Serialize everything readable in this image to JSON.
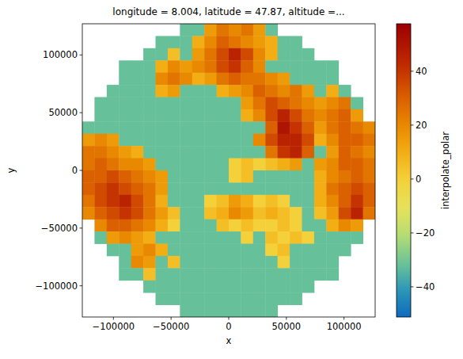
{
  "chart_data": {
    "type": "heatmap",
    "title": "longitude = 8.004, latitude = 47.87, altitude =...",
    "x_label": "x",
    "y_label": "y",
    "xlim": [
      -127000,
      127000
    ],
    "ylim": [
      -127000,
      127000
    ],
    "xticks": [
      {
        "value": -100000,
        "label": "−100000"
      },
      {
        "value": -50000,
        "label": "−50000"
      },
      0,
      50000,
      100000
    ],
    "yticks": [
      {
        "value": -100000,
        "label": "−100000"
      },
      {
        "value": -50000,
        "label": "−50000"
      },
      0,
      50000,
      100000
    ],
    "grid": false,
    "cells": [
      [
        null,
        null,
        null,
        null,
        null,
        null,
        null,
        null,
        -32,
        -32,
        15,
        25,
        20,
        25,
        15,
        -32,
        null,
        null,
        null,
        null,
        null,
        null,
        null,
        null
      ],
      [
        null,
        null,
        null,
        null,
        null,
        null,
        -32,
        -32,
        -32,
        10,
        20,
        30,
        25,
        20,
        15,
        10,
        -32,
        -32,
        null,
        null,
        null,
        null,
        null,
        null
      ],
      [
        null,
        null,
        null,
        null,
        null,
        -32,
        -32,
        5,
        -32,
        15,
        25,
        35,
        45,
        35,
        20,
        10,
        -32,
        -32,
        -32,
        null,
        null,
        null,
        null,
        null
      ],
      [
        null,
        null,
        null,
        -32,
        -32,
        -32,
        10,
        20,
        15,
        20,
        25,
        35,
        40,
        30,
        20,
        -32,
        -32,
        -32,
        -32,
        -32,
        -32,
        null,
        null,
        null
      ],
      [
        null,
        null,
        null,
        -32,
        -32,
        -32,
        20,
        25,
        20,
        10,
        15,
        25,
        30,
        25,
        25,
        20,
        15,
        -32,
        -32,
        -32,
        -32,
        null,
        null,
        null
      ],
      [
        null,
        null,
        -32,
        -32,
        -32,
        -32,
        10,
        15,
        -32,
        -32,
        -32,
        10,
        15,
        20,
        30,
        25,
        20,
        25,
        15,
        -32,
        10,
        -32,
        null,
        null
      ],
      [
        null,
        -32,
        -32,
        -32,
        -32,
        -32,
        -32,
        -32,
        -32,
        -32,
        -32,
        -32,
        -32,
        15,
        25,
        35,
        30,
        25,
        20,
        15,
        20,
        25,
        -32,
        null
      ],
      [
        null,
        -32,
        -32,
        -32,
        -32,
        -32,
        -32,
        -32,
        -32,
        -32,
        -32,
        -32,
        -32,
        10,
        20,
        35,
        45,
        35,
        25,
        20,
        25,
        30,
        15,
        null
      ],
      [
        -32,
        -32,
        -32,
        -32,
        -32,
        -32,
        -32,
        -32,
        -32,
        -32,
        -32,
        -32,
        -32,
        -32,
        -32,
        30,
        50,
        40,
        30,
        15,
        25,
        30,
        25,
        20
      ],
      [
        15,
        20,
        15,
        -32,
        -32,
        -32,
        -32,
        -32,
        -32,
        -32,
        -32,
        -32,
        -32,
        -32,
        20,
        35,
        45,
        45,
        35,
        10,
        20,
        30,
        30,
        25
      ],
      [
        25,
        25,
        20,
        15,
        10,
        -32,
        -32,
        -32,
        -32,
        -32,
        -32,
        -32,
        -32,
        -32,
        -32,
        25,
        40,
        45,
        30,
        -32,
        15,
        30,
        25,
        20
      ],
      [
        25,
        30,
        25,
        20,
        20,
        15,
        -32,
        -32,
        -32,
        -32,
        -32,
        -32,
        0,
        5,
        0,
        5,
        10,
        15,
        -32,
        15,
        20,
        30,
        30,
        25
      ],
      [
        30,
        30,
        35,
        30,
        25,
        20,
        15,
        -32,
        -32,
        -32,
        -32,
        -32,
        0,
        5,
        -32,
        -32,
        -32,
        -32,
        -32,
        10,
        20,
        25,
        30,
        25
      ],
      [
        30,
        35,
        40,
        35,
        30,
        25,
        15,
        -32,
        -32,
        -32,
        -32,
        -32,
        -32,
        -32,
        -32,
        -32,
        -32,
        -32,
        -32,
        10,
        25,
        30,
        35,
        30
      ],
      [
        25,
        35,
        40,
        45,
        35,
        25,
        10,
        -32,
        -32,
        -32,
        0,
        5,
        15,
        10,
        0,
        5,
        0,
        -32,
        -32,
        10,
        20,
        30,
        40,
        30
      ],
      [
        20,
        30,
        35,
        40,
        35,
        25,
        15,
        5,
        -32,
        -32,
        5,
        10,
        20,
        15,
        5,
        10,
        5,
        0,
        -32,
        5,
        15,
        35,
        45,
        25
      ],
      [
        null,
        20,
        30,
        30,
        25,
        20,
        10,
        0,
        -32,
        -32,
        -32,
        5,
        0,
        5,
        0,
        0,
        5,
        0,
        -32,
        -32,
        10,
        20,
        15,
        null
      ],
      [
        null,
        -32,
        15,
        20,
        15,
        10,
        -32,
        -32,
        -32,
        -32,
        -32,
        -32,
        -32,
        0,
        -32,
        5,
        0,
        5,
        0,
        -32,
        -32,
        -32,
        -32,
        null
      ],
      [
        null,
        null,
        -32,
        -32,
        15,
        20,
        10,
        -32,
        -32,
        -32,
        -32,
        -32,
        -32,
        -32,
        -32,
        0,
        5,
        -32,
        -32,
        -32,
        -32,
        -32,
        null,
        null
      ],
      [
        null,
        null,
        null,
        -32,
        20,
        15,
        -32,
        5,
        -32,
        -32,
        -32,
        -32,
        -32,
        -32,
        -32,
        -32,
        0,
        -32,
        -32,
        -32,
        -32,
        null,
        null,
        null
      ],
      [
        null,
        null,
        null,
        -32,
        -32,
        5,
        -32,
        -32,
        -32,
        -32,
        -32,
        -32,
        -32,
        -32,
        -32,
        -32,
        -32,
        -32,
        -32,
        -32,
        -32,
        null,
        null,
        null
      ],
      [
        null,
        null,
        null,
        null,
        null,
        -32,
        -32,
        -32,
        -32,
        -32,
        -32,
        -32,
        -32,
        -32,
        -32,
        -32,
        -32,
        -32,
        -32,
        null,
        null,
        null,
        null,
        null
      ],
      [
        null,
        null,
        null,
        null,
        null,
        null,
        -32,
        -32,
        -32,
        -32,
        -32,
        -32,
        -32,
        -32,
        -32,
        -32,
        -32,
        -32,
        null,
        null,
        null,
        null,
        null,
        null
      ],
      [
        null,
        null,
        null,
        null,
        null,
        null,
        null,
        null,
        -32,
        -32,
        -32,
        -32,
        -32,
        -32,
        -32,
        -32,
        null,
        null,
        null,
        null,
        null,
        null,
        null,
        null
      ]
    ],
    "colorbar_label": "interpolate_polar",
    "colorbar_range": [
      -51.2,
      57.6
    ],
    "colorbar_ticks": [
      {
        "value": -40,
        "label": "−40"
      },
      {
        "value": -20,
        "label": "−20"
      },
      0,
      20,
      40
    ]
  }
}
